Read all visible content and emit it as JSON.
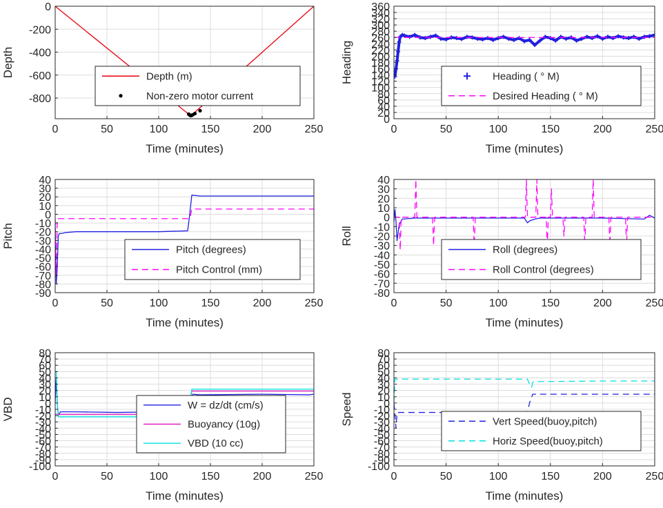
{
  "chart_data": [
    {
      "id": "depth",
      "type": "line",
      "xlabel": "Time (minutes)",
      "ylabel": "Depth",
      "xlim": [
        0,
        250
      ],
      "ylim": [
        -980,
        0
      ],
      "xticks": [
        0,
        50,
        100,
        150,
        200,
        250
      ],
      "yticks": [
        0,
        -200,
        -400,
        -600,
        -800
      ],
      "grid": true,
      "legend": {
        "placement": "center",
        "entries": [
          "Depth (m)",
          "Non-zero motor current"
        ]
      },
      "series": [
        {
          "name": "Depth (m)",
          "style": "line",
          "color": "#e8000b",
          "x": [
            0,
            131,
            250
          ],
          "y": [
            0,
            -955,
            0
          ]
        },
        {
          "name": "Non-zero motor current",
          "style": "dot",
          "color": "#000000",
          "x": [
            129,
            130,
            131,
            132,
            133,
            135,
            140
          ],
          "y": [
            -940,
            -948,
            -953,
            -950,
            -945,
            -935,
            -910
          ]
        }
      ]
    },
    {
      "id": "heading",
      "type": "scatter",
      "xlabel": "Time (minutes)",
      "ylabel": "Heading",
      "xlim": [
        0,
        250
      ],
      "ylim": [
        0,
        360
      ],
      "xticks": [
        0,
        50,
        100,
        150,
        200,
        250
      ],
      "yticks": [
        0,
        20,
        40,
        60,
        80,
        100,
        120,
        140,
        160,
        180,
        200,
        220,
        240,
        260,
        280,
        300,
        320,
        340,
        360
      ],
      "grid": true,
      "legend": {
        "placement": "center",
        "entries": [
          "Heading ( ° M)",
          "Desired Heading ( ° M)"
        ]
      },
      "series": [
        {
          "name": "Heading ( ° M)",
          "style": "plus",
          "color": "#1f1fe0",
          "x": [
            0,
            1,
            2,
            3,
            4,
            5,
            6,
            8,
            10,
            15,
            20,
            25,
            30,
            35,
            40,
            45,
            50,
            55,
            60,
            65,
            70,
            75,
            80,
            85,
            90,
            95,
            100,
            105,
            110,
            115,
            120,
            125,
            130,
            135,
            140,
            145,
            150,
            155,
            160,
            165,
            170,
            175,
            180,
            185,
            190,
            195,
            200,
            205,
            210,
            215,
            220,
            225,
            230,
            235,
            240,
            245,
            250
          ],
          "y": [
            150,
            135,
            160,
            185,
            215,
            245,
            262,
            268,
            266,
            262,
            268,
            260,
            258,
            262,
            266,
            256,
            254,
            260,
            258,
            255,
            262,
            260,
            256,
            254,
            258,
            252,
            258,
            262,
            256,
            252,
            258,
            248,
            252,
            236,
            250,
            262,
            258,
            250,
            262,
            256,
            260,
            250,
            256,
            262,
            258,
            264,
            256,
            262,
            258,
            264,
            260,
            258,
            262,
            256,
            262,
            264,
            268
          ]
        },
        {
          "name": "Desired Heading ( ° M)",
          "style": "dash",
          "color": "#ff00ff",
          "x": [
            0,
            250
          ],
          "y": [
            260,
            260
          ]
        }
      ]
    },
    {
      "id": "pitch",
      "type": "line",
      "xlabel": "Time (minutes)",
      "ylabel": "Pitch",
      "xlim": [
        0,
        250
      ],
      "ylim": [
        -90,
        40
      ],
      "xticks": [
        0,
        50,
        100,
        150,
        200,
        250
      ],
      "yticks": [
        40,
        30,
        20,
        10,
        0,
        -10,
        -20,
        -30,
        -40,
        -50,
        -60,
        -70,
        -80,
        -90
      ],
      "grid": true,
      "legend": {
        "placement": "lower-right",
        "entries": [
          "Pitch (degrees)",
          "Pitch Control (mm)"
        ]
      },
      "series": [
        {
          "name": "Pitch (degrees)",
          "style": "line",
          "color": "#1f1fe0",
          "x": [
            0,
            1,
            2,
            3,
            4,
            6,
            10,
            20,
            50,
            100,
            128,
            130,
            132,
            140,
            200,
            250,
            251
          ],
          "y": [
            -10,
            -80,
            -60,
            -25,
            -22,
            -22,
            -21,
            -20,
            -20,
            -20,
            -19,
            0,
            22,
            21,
            21,
            21,
            5
          ]
        },
        {
          "name": "Pitch Control (mm)",
          "style": "dash",
          "color": "#ff00ff",
          "x": [
            0,
            1,
            2,
            3,
            130,
            131,
            132,
            250
          ],
          "y": [
            -5,
            -70,
            -5,
            -5,
            -5,
            0,
            6,
            6
          ]
        }
      ]
    },
    {
      "id": "roll",
      "type": "line",
      "xlabel": "Time (minutes)",
      "ylabel": "Roll",
      "xlim": [
        0,
        250
      ],
      "ylim": [
        -80,
        40
      ],
      "xticks": [
        0,
        50,
        100,
        150,
        200,
        250
      ],
      "yticks": [
        40,
        30,
        20,
        10,
        0,
        -10,
        -20,
        -30,
        -40,
        -50,
        -60,
        -70,
        -80
      ],
      "grid": true,
      "legend": {
        "placement": "lower-right",
        "entries": [
          "Roll (degrees)",
          "Roll Control (degrees)"
        ]
      },
      "series": [
        {
          "name": "Roll (degrees)",
          "style": "line",
          "color": "#1f1fe0",
          "x": [
            0,
            1,
            2,
            3,
            5,
            8,
            20,
            50,
            100,
            125,
            128,
            130,
            135,
            140,
            150,
            200,
            240,
            245,
            250
          ],
          "y": [
            -5,
            8,
            -5,
            -25,
            -8,
            -2,
            -1,
            -1,
            -1,
            -1,
            -6,
            -4,
            -2,
            -1,
            -1,
            -1,
            -2,
            2,
            -1
          ]
        },
        {
          "name": "Roll Control (degrees)",
          "style": "dash",
          "color": "#ff00ff",
          "x": [
            0,
            5,
            6,
            7,
            20,
            21,
            22,
            37,
            38,
            39,
            76,
            77,
            78,
            126,
            127,
            128,
            136,
            137,
            138,
            146,
            147,
            148,
            150,
            151,
            152,
            162,
            163,
            164,
            182,
            183,
            184,
            190,
            191,
            192,
            206,
            207,
            208,
            222,
            223,
            224,
            250
          ],
          "y": [
            0,
            0,
            -35,
            0,
            0,
            40,
            0,
            0,
            -30,
            0,
            0,
            -35,
            0,
            0,
            40,
            0,
            0,
            40,
            0,
            0,
            -30,
            0,
            0,
            30,
            0,
            0,
            -20,
            0,
            0,
            -30,
            0,
            0,
            40,
            0,
            0,
            -30,
            0,
            0,
            -30,
            0,
            0
          ]
        }
      ]
    },
    {
      "id": "vbd",
      "type": "line",
      "xlabel": "Time (minutes)",
      "ylabel": "VBD",
      "xlim": [
        0,
        250
      ],
      "ylim": [
        -100,
        80
      ],
      "xticks": [
        0,
        50,
        100,
        150,
        200,
        250
      ],
      "yticks": [
        80,
        70,
        60,
        50,
        40,
        30,
        20,
        10,
        0,
        -10,
        -20,
        -30,
        -40,
        -50,
        -60,
        -70,
        -80,
        -90,
        -100
      ],
      "grid": true,
      "legend": {
        "placement": "lower-right",
        "entries": [
          "W = dz/dt (cm/s)",
          "Buoyancy (10g)",
          "VBD (10 cc)"
        ]
      },
      "series": [
        {
          "name": "W = dz/dt (cm/s)",
          "style": "line",
          "color": "#1f1fe0",
          "x": [
            0,
            1,
            2,
            3,
            5,
            20,
            60,
            100,
            128,
            130,
            133,
            140,
            200,
            245,
            250
          ],
          "y": [
            0,
            40,
            0,
            -20,
            -14,
            -14,
            -15,
            -14,
            -14,
            0,
            14,
            13,
            14,
            13,
            14
          ]
        },
        {
          "name": "Buoyancy (10g)",
          "style": "line",
          "color": "#e020c0",
          "x": [
            0,
            2,
            3,
            128,
            130,
            132,
            250
          ],
          "y": [
            -18,
            -18,
            -18,
            -18,
            0,
            19,
            19
          ]
        },
        {
          "name": "VBD (10 cc)",
          "style": "line",
          "color": "#00e0e0",
          "x": [
            0,
            1,
            2,
            3,
            128,
            130,
            132,
            250
          ],
          "y": [
            50,
            50,
            0,
            -22,
            -22,
            0,
            22,
            22
          ]
        }
      ]
    },
    {
      "id": "speed",
      "type": "line",
      "xlabel": "Time (minutes)",
      "ylabel": "Speed",
      "xlim": [
        0,
        250
      ],
      "ylim": [
        -100,
        80
      ],
      "xticks": [
        0,
        50,
        100,
        150,
        200,
        250
      ],
      "yticks": [
        80,
        70,
        60,
        50,
        40,
        30,
        20,
        10,
        0,
        -10,
        -20,
        -30,
        -40,
        -50,
        -60,
        -70,
        -80,
        -90,
        -100
      ],
      "grid": true,
      "legend": {
        "placement": "lower-right",
        "entries": [
          "Vert Speed(buoy,pitch)",
          "Horiz Speed(buoy,pitch)"
        ]
      },
      "series": [
        {
          "name": "Vert Speed(buoy,pitch)",
          "style": "dash",
          "color": "#1f1fe0",
          "x": [
            0,
            2,
            3,
            5,
            20,
            100,
            128,
            130,
            133,
            140,
            200,
            250
          ],
          "y": [
            0,
            -40,
            -16,
            -15,
            -15,
            -15,
            -14,
            0,
            14,
            14,
            14,
            14
          ]
        },
        {
          "name": "Horiz Speed(buoy,pitch)",
          "style": "dash",
          "color": "#00e0e0",
          "x": [
            0,
            1,
            2,
            3,
            50,
            100,
            128,
            130,
            132,
            133,
            135,
            200,
            250
          ],
          "y": [
            0,
            38,
            38,
            38,
            38,
            38,
            38,
            30,
            25,
            33,
            34,
            35,
            35
          ]
        }
      ]
    }
  ]
}
